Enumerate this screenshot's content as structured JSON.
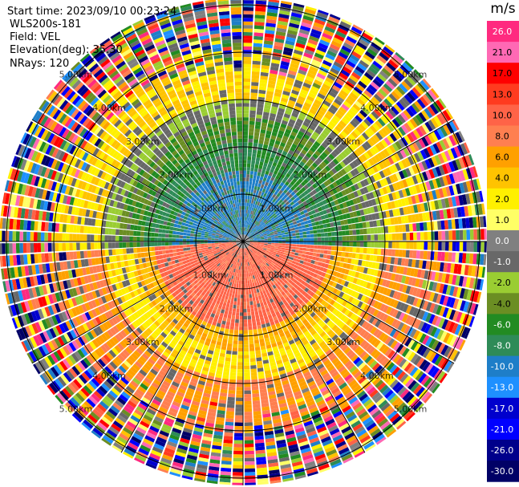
{
  "info": {
    "start_time": "Start time: 2023/09/10 00:23:24",
    "station": "WLS200s-181",
    "field": "Field: VEL",
    "elevation": "Elevation(deg): 35.30",
    "nrays": "NRays: 120"
  },
  "chart_data": {
    "type": "heatmap",
    "plot": "PPI polar scan",
    "field": "VEL",
    "units": "m/s",
    "nrays": 120,
    "elevation_deg": 35.3,
    "range_rings_km": [
      1.0,
      2.0,
      3.0,
      4.0,
      5.0
    ],
    "ring_labels": [
      "1.00km",
      "2.00km",
      "3.00km",
      "4.00km",
      "5.00km"
    ],
    "colorbar": {
      "title": "m/s",
      "tick_labels": [
        "26.0",
        "21.0",
        "17.0",
        "13.0",
        "10.0",
        "8.0",
        "6.0",
        "4.0",
        "2.0",
        "1.0",
        "0.0",
        "-1.0",
        "-2.0",
        "-4.0",
        "-6.0",
        "-8.0",
        "-10.0",
        "-13.0",
        "-17.0",
        "-21.0",
        "-26.0",
        "-30.0"
      ],
      "colors": [
        "#ff2a7f",
        "#ff69b4",
        "#ff0000",
        "#ff3b1f",
        "#ff6347",
        "#ff7f50",
        "#ffa000",
        "#ffc300",
        "#fff000",
        "#ffff66",
        "#808080",
        "#686868",
        "#9acd32",
        "#6b8e23",
        "#228b22",
        "#2e8b57",
        "#1e7ec8",
        "#1e90ff",
        "#0000cd",
        "#0000ff",
        "#00008b",
        "#000066"
      ]
    },
    "pattern": {
      "north_half": "negative velocities (green, teal, blue toward center)",
      "south_half": "positive velocities (yellow, orange, salmon toward center)",
      "outer_ring": "noisy / mixed colors"
    }
  }
}
